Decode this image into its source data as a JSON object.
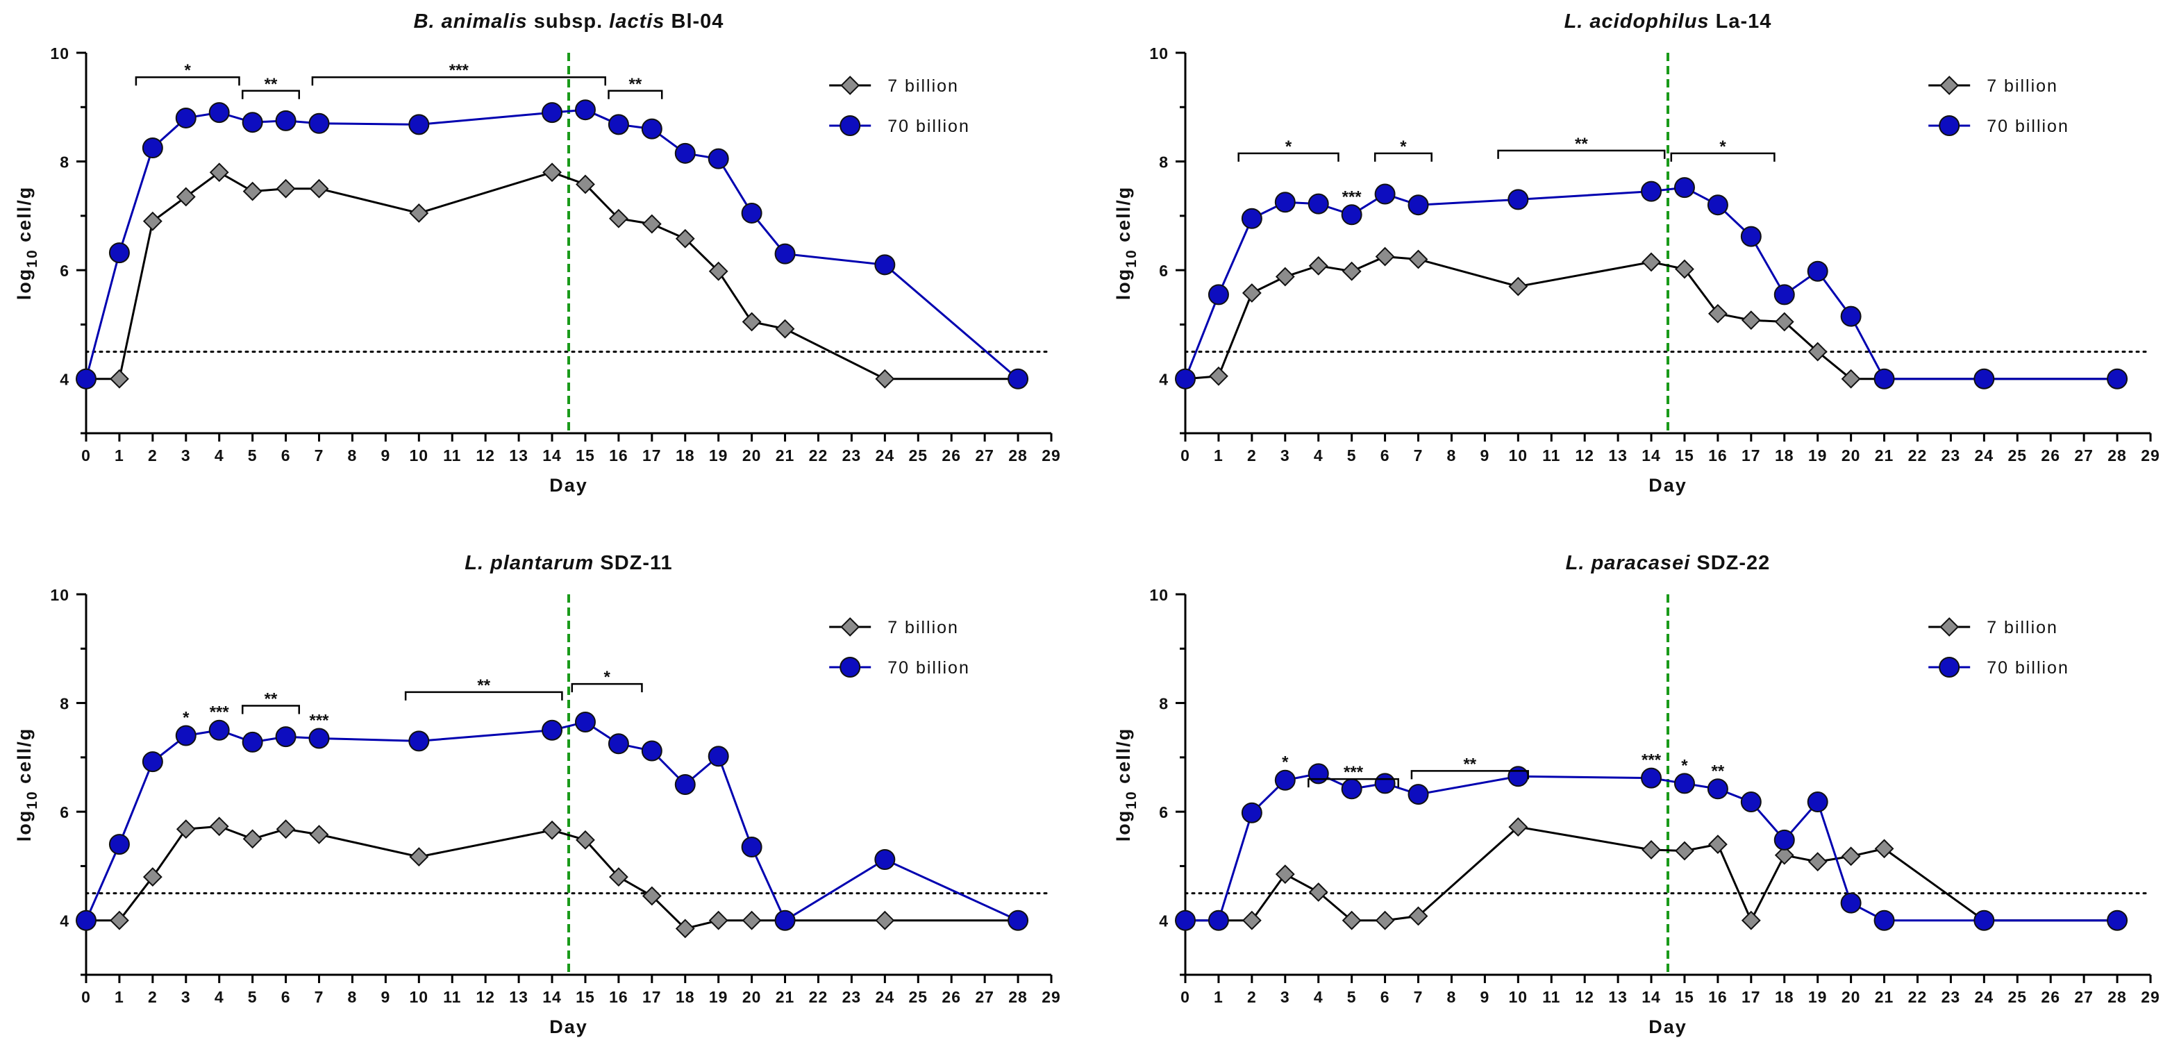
{
  "colors": {
    "series_7": "#8c8c8c",
    "series_7_line": "#000000",
    "series_70": "#0d0dbf",
    "series_70_line": "#0000b0",
    "threshold": "#000000",
    "divider": "#1a9a1a"
  },
  "chart_data": [
    {
      "type": "line",
      "title_parts": [
        {
          "text": "B. animalis",
          "italic": true
        },
        {
          "text": " subsp. ",
          "italic": false
        },
        {
          "text": "lactis",
          "italic": true
        },
        {
          "text": " Bl-04",
          "italic": false
        }
      ],
      "xlabel": "Day",
      "ylabel": "log",
      "ylabel_sub": "10",
      "ylabel_tail": " cell/g",
      "xlim": [
        0,
        29
      ],
      "ylim": [
        3,
        10
      ],
      "x_ticks": [
        0,
        1,
        2,
        3,
        4,
        5,
        6,
        7,
        8,
        9,
        10,
        11,
        12,
        13,
        14,
        15,
        16,
        17,
        18,
        19,
        20,
        21,
        22,
        23,
        24,
        25,
        26,
        27,
        28,
        29
      ],
      "y_ticks": [
        4,
        6,
        8,
        10
      ],
      "threshold_y": 4.5,
      "divider_x": 14.5,
      "legend": [
        "7 billion",
        "70 billion"
      ],
      "series": [
        {
          "name": "7 billion",
          "marker": "diamond",
          "x": [
            0,
            1,
            2,
            3,
            4,
            5,
            6,
            7,
            10,
            14,
            15,
            16,
            17,
            18,
            19,
            20,
            21,
            24,
            28
          ],
          "y": [
            4.0,
            4.0,
            6.9,
            7.35,
            7.8,
            7.45,
            7.5,
            7.5,
            7.05,
            7.8,
            7.58,
            6.95,
            6.85,
            6.58,
            5.98,
            5.05,
            4.92,
            4.0,
            4.0
          ]
        },
        {
          "name": "70 billion",
          "marker": "circle",
          "x": [
            0,
            1,
            2,
            3,
            4,
            5,
            6,
            7,
            10,
            14,
            15,
            16,
            17,
            18,
            19,
            20,
            21,
            24,
            28
          ],
          "y": [
            4.0,
            6.32,
            8.25,
            8.8,
            8.9,
            8.72,
            8.75,
            8.7,
            8.68,
            8.9,
            8.95,
            8.68,
            8.6,
            8.15,
            8.05,
            7.05,
            6.3,
            6.1,
            4.0
          ]
        }
      ],
      "brackets": [
        {
          "x1": 1.5,
          "x2": 4.6,
          "y": 9.55,
          "label": "*"
        },
        {
          "x1": 4.7,
          "x2": 6.4,
          "y": 9.3,
          "label": "**"
        },
        {
          "x1": 6.8,
          "x2": 15.6,
          "y": 9.55,
          "label": "***"
        },
        {
          "x1": 15.7,
          "x2": 17.3,
          "y": 9.3,
          "label": "**"
        }
      ],
      "point_labels": []
    },
    {
      "type": "line",
      "title_parts": [
        {
          "text": "L. acidophilus",
          "italic": true
        },
        {
          "text": " La-14",
          "italic": false
        }
      ],
      "xlabel": "Day",
      "ylabel": "log",
      "ylabel_sub": "10",
      "ylabel_tail": " cell/g",
      "xlim": [
        0,
        29
      ],
      "ylim": [
        3,
        10
      ],
      "x_ticks": [
        0,
        1,
        2,
        3,
        4,
        5,
        6,
        7,
        8,
        9,
        10,
        11,
        12,
        13,
        14,
        15,
        16,
        17,
        18,
        19,
        20,
        21,
        22,
        23,
        24,
        25,
        26,
        27,
        28,
        29
      ],
      "y_ticks": [
        4,
        6,
        8,
        10
      ],
      "threshold_y": 4.5,
      "divider_x": 14.5,
      "legend": [
        "7 billion",
        "70 billion"
      ],
      "series": [
        {
          "name": "7 billion",
          "marker": "diamond",
          "x": [
            0,
            1,
            2,
            3,
            4,
            5,
            6,
            7,
            10,
            14,
            15,
            16,
            17,
            18,
            19,
            20,
            21,
            24,
            28
          ],
          "y": [
            4.0,
            4.05,
            5.58,
            5.88,
            6.08,
            5.98,
            6.25,
            6.2,
            5.7,
            6.15,
            6.02,
            5.2,
            5.08,
            5.05,
            4.5,
            4.0,
            4.0,
            4.0,
            4.0
          ]
        },
        {
          "name": "70 billion",
          "marker": "circle",
          "x": [
            0,
            1,
            2,
            3,
            4,
            5,
            6,
            7,
            10,
            14,
            15,
            16,
            17,
            18,
            19,
            20,
            21,
            24,
            28
          ],
          "y": [
            4.0,
            5.55,
            6.95,
            7.25,
            7.22,
            7.02,
            7.4,
            7.2,
            7.3,
            7.45,
            7.52,
            7.2,
            6.62,
            5.55,
            5.98,
            5.15,
            4.0,
            4.0,
            4.0
          ]
        }
      ],
      "brackets": [
        {
          "x1": 1.6,
          "x2": 4.6,
          "y": 8.15,
          "label": "*"
        },
        {
          "x1": 5.7,
          "x2": 7.4,
          "y": 8.15,
          "label": "*"
        },
        {
          "x1": 9.4,
          "x2": 14.4,
          "y": 8.2,
          "label": "**"
        },
        {
          "x1": 14.6,
          "x2": 17.7,
          "y": 8.15,
          "label": "*"
        }
      ],
      "point_labels": [
        {
          "x": 5.0,
          "y": 7.02,
          "label": "***"
        }
      ]
    },
    {
      "type": "line",
      "title_parts": [
        {
          "text": "L. plantarum",
          "italic": true
        },
        {
          "text": " SDZ-11",
          "italic": false
        }
      ],
      "xlabel": "Day",
      "ylabel": "log",
      "ylabel_sub": "10",
      "ylabel_tail": " cell/g",
      "xlim": [
        0,
        29
      ],
      "ylim": [
        3,
        10
      ],
      "x_ticks": [
        0,
        1,
        2,
        3,
        4,
        5,
        6,
        7,
        8,
        9,
        10,
        11,
        12,
        13,
        14,
        15,
        16,
        17,
        18,
        19,
        20,
        21,
        22,
        23,
        24,
        25,
        26,
        27,
        28,
        29
      ],
      "y_ticks": [
        4,
        6,
        8,
        10
      ],
      "threshold_y": 4.5,
      "divider_x": 14.5,
      "legend": [
        "7 billion",
        "70 billion"
      ],
      "series": [
        {
          "name": "7 billion",
          "marker": "diamond",
          "x": [
            0,
            1,
            2,
            3,
            4,
            5,
            6,
            7,
            10,
            14,
            15,
            16,
            17,
            18,
            19,
            20,
            21,
            24,
            28
          ],
          "y": [
            4.0,
            4.0,
            4.8,
            5.68,
            5.73,
            5.5,
            5.68,
            5.58,
            5.17,
            5.66,
            5.48,
            4.8,
            4.45,
            3.85,
            4.0,
            4.0,
            4.0,
            4.0,
            4.0
          ]
        },
        {
          "name": "70 billion",
          "marker": "circle",
          "x": [
            0,
            1,
            2,
            3,
            4,
            5,
            6,
            7,
            10,
            14,
            15,
            16,
            17,
            18,
            19,
            20,
            21,
            24,
            28
          ],
          "y": [
            4.0,
            5.4,
            6.92,
            7.4,
            7.5,
            7.28,
            7.38,
            7.35,
            7.3,
            7.5,
            7.65,
            7.25,
            7.12,
            6.5,
            7.02,
            5.35,
            4.0,
            5.12,
            4.0
          ]
        }
      ],
      "brackets": [
        {
          "x1": 4.7,
          "x2": 6.4,
          "y": 7.95,
          "label": "**"
        },
        {
          "x1": 9.6,
          "x2": 14.3,
          "y": 8.2,
          "label": "**"
        },
        {
          "x1": 14.6,
          "x2": 16.7,
          "y": 8.35,
          "label": "*"
        }
      ],
      "point_labels": [
        {
          "x": 3.0,
          "y": 7.4,
          "label": "*"
        },
        {
          "x": 4.0,
          "y": 7.5,
          "label": "***"
        },
        {
          "x": 7.0,
          "y": 7.35,
          "label": "***"
        }
      ]
    },
    {
      "type": "line",
      "title_parts": [
        {
          "text": "L. paracasei",
          "italic": true
        },
        {
          "text": " SDZ-22",
          "italic": false
        }
      ],
      "xlabel": "Day",
      "ylabel": "log",
      "ylabel_sub": "10",
      "ylabel_tail": " cell/g",
      "xlim": [
        0,
        29
      ],
      "ylim": [
        3,
        10
      ],
      "x_ticks": [
        0,
        1,
        2,
        3,
        4,
        5,
        6,
        7,
        8,
        9,
        10,
        11,
        12,
        13,
        14,
        15,
        16,
        17,
        18,
        19,
        20,
        21,
        22,
        23,
        24,
        25,
        26,
        27,
        28,
        29
      ],
      "y_ticks": [
        4,
        6,
        8,
        10
      ],
      "threshold_y": 4.5,
      "divider_x": 14.5,
      "legend": [
        "7 billion",
        "70 billion"
      ],
      "series": [
        {
          "name": "7 billion",
          "marker": "diamond",
          "x": [
            0,
            1,
            2,
            3,
            4,
            5,
            6,
            7,
            10,
            14,
            15,
            16,
            17,
            18,
            19,
            20,
            21,
            24,
            28
          ],
          "y": [
            4.0,
            4.0,
            4.0,
            4.85,
            4.52,
            4.0,
            4.0,
            4.08,
            5.72,
            5.3,
            5.28,
            5.4,
            4.0,
            5.2,
            5.08,
            5.18,
            5.32,
            4.0,
            4.0
          ]
        },
        {
          "name": "70 billion",
          "marker": "circle",
          "x": [
            0,
            1,
            2,
            3,
            4,
            5,
            6,
            7,
            10,
            14,
            15,
            16,
            17,
            18,
            19,
            20,
            21,
            24,
            28
          ],
          "y": [
            4.0,
            4.0,
            5.98,
            6.58,
            6.7,
            6.42,
            6.52,
            6.32,
            6.65,
            6.62,
            6.52,
            6.42,
            6.18,
            5.48,
            6.18,
            4.32,
            4.0,
            4.0,
            4.0
          ]
        }
      ],
      "brackets": [
        {
          "x1": 3.7,
          "x2": 6.4,
          "y": 6.6,
          "label": "***"
        },
        {
          "x1": 6.8,
          "x2": 10.3,
          "y": 6.75,
          "label": "**"
        }
      ],
      "point_labels": [
        {
          "x": 3.0,
          "y": 6.58,
          "label": "*"
        },
        {
          "x": 14.0,
          "y": 6.62,
          "label": "***"
        },
        {
          "x": 15.0,
          "y": 6.52,
          "label": "*"
        },
        {
          "x": 16.0,
          "y": 6.42,
          "label": "**"
        }
      ]
    }
  ]
}
